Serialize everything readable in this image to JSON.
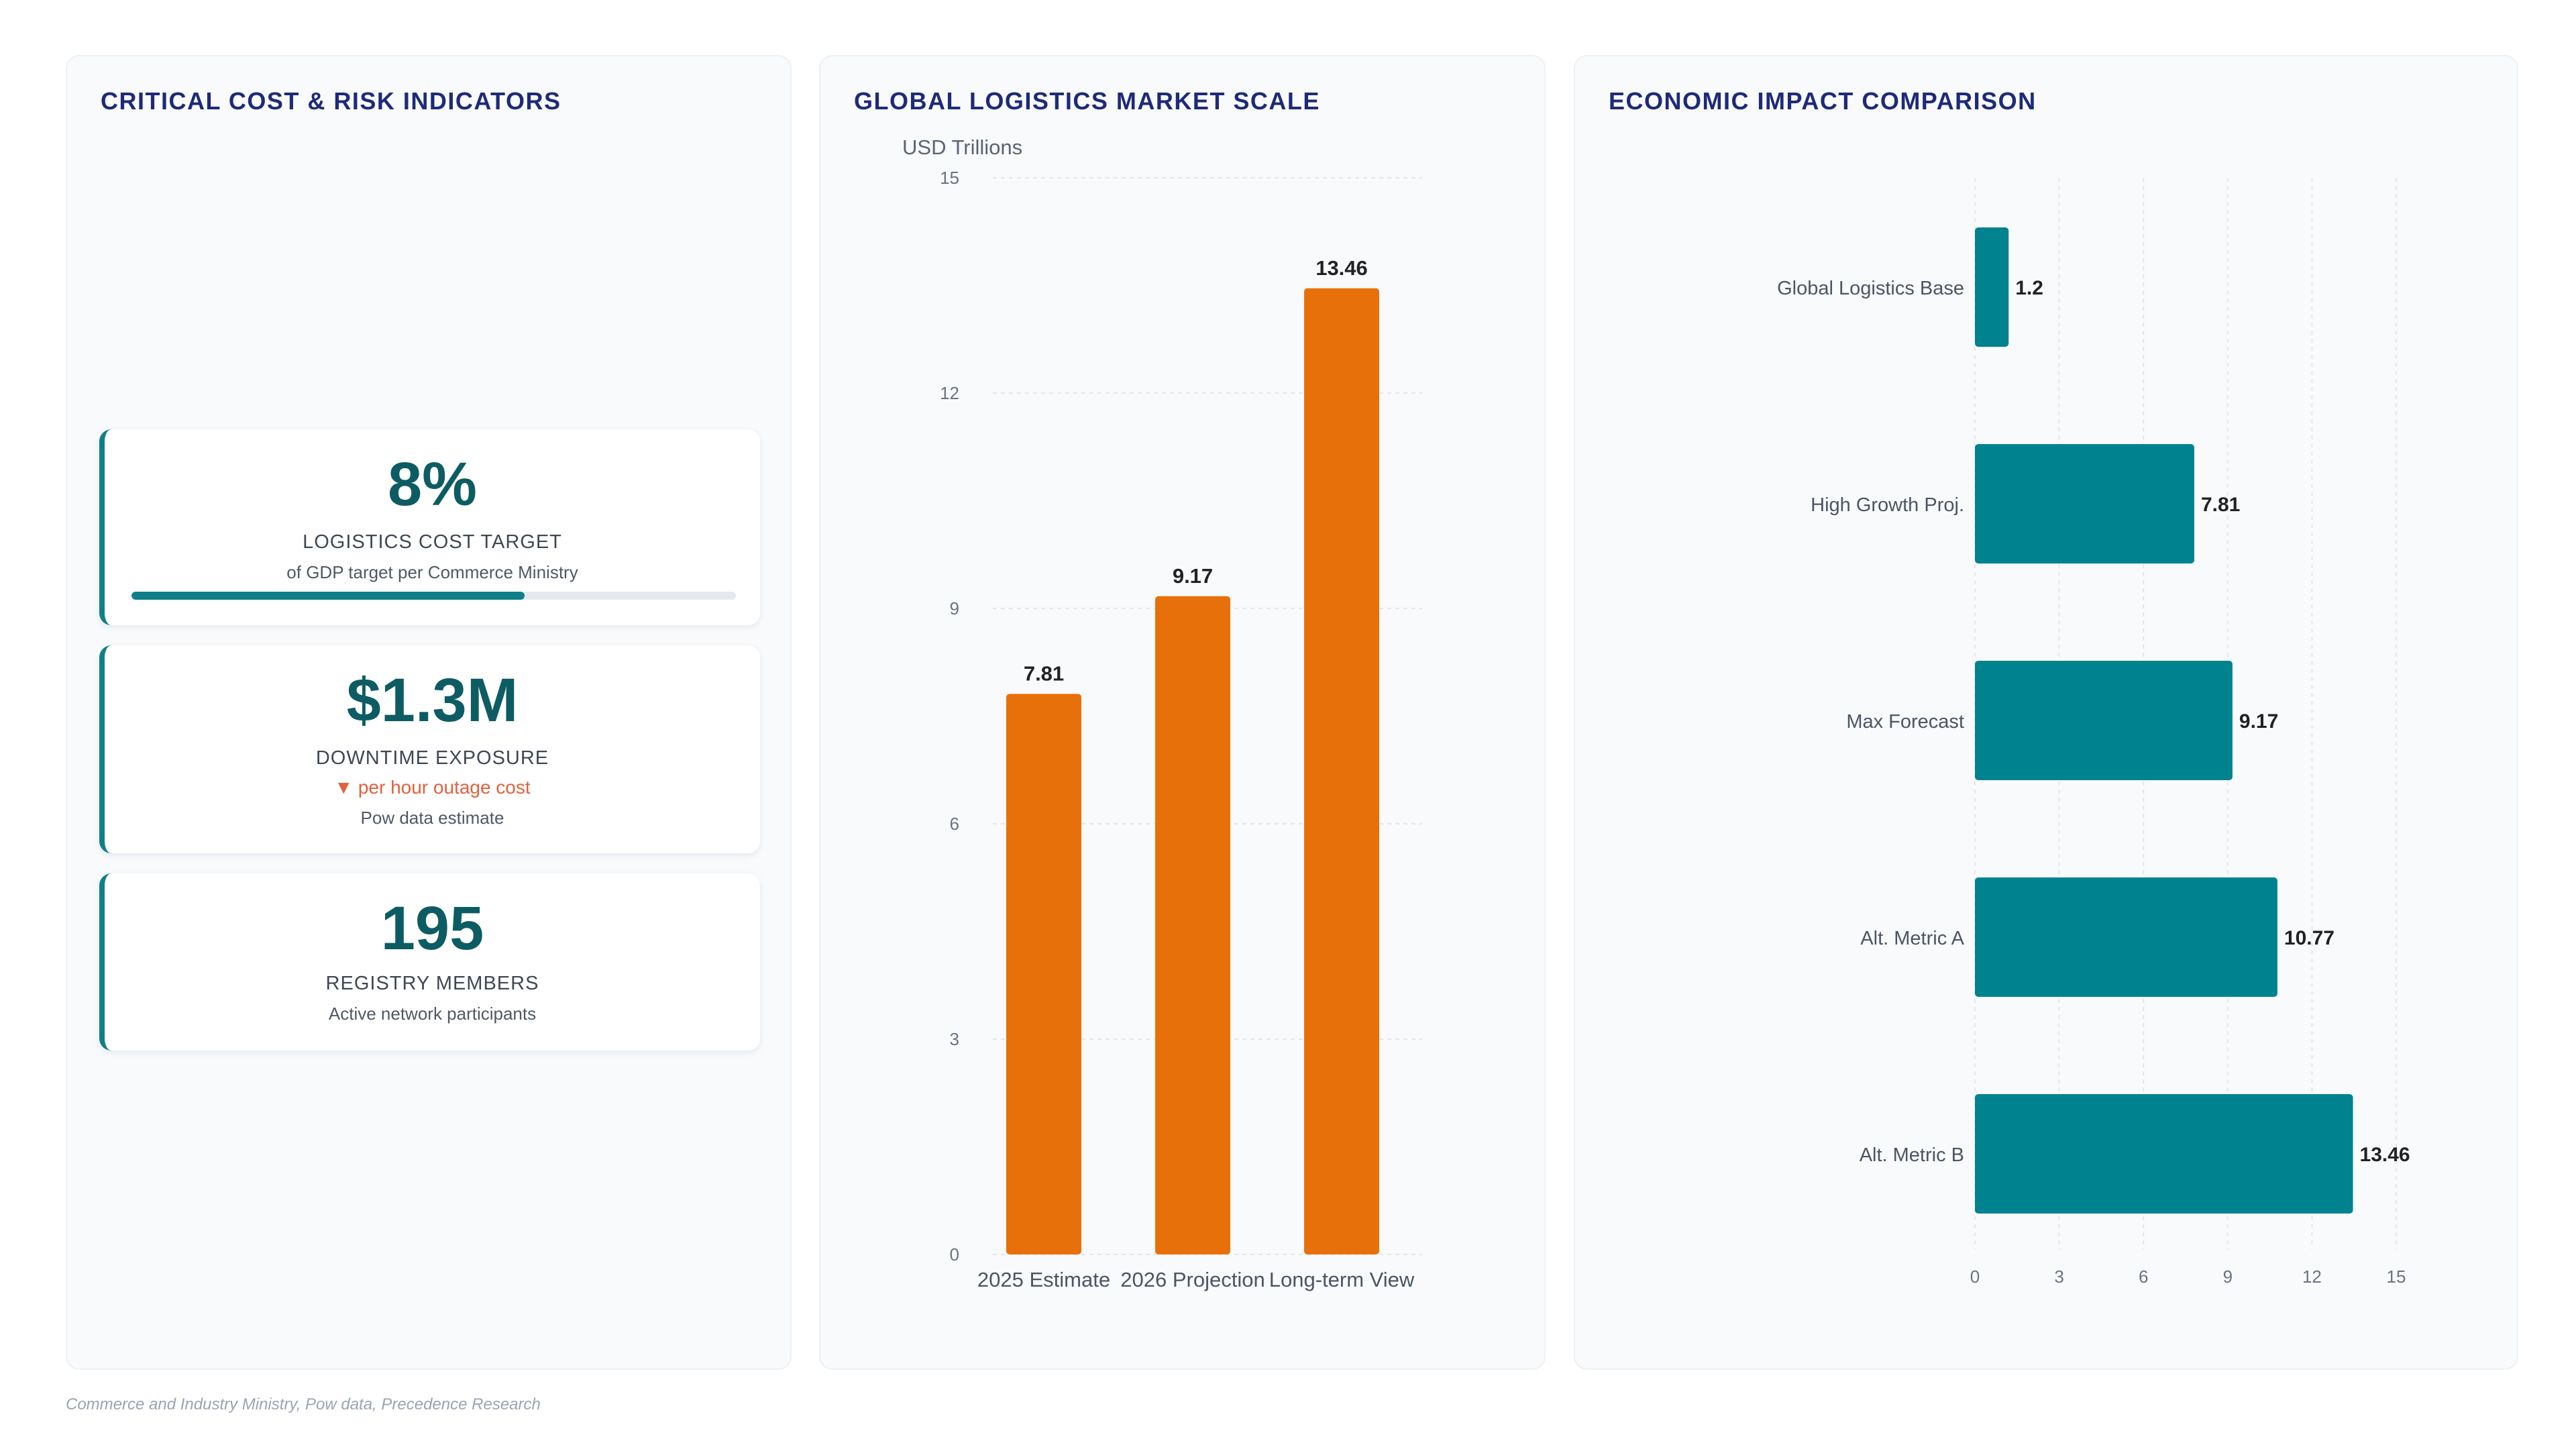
{
  "panels": {
    "kpi_title": "CRITICAL COST & RISK INDICATORS",
    "market_title": "GLOBAL LOGISTICS MARKET SCALE",
    "impact_title": "ECONOMIC IMPACT COMPARISON"
  },
  "kpis": [
    {
      "value": "8%",
      "label": "LOGISTICS COST TARGET",
      "sub": "of GDP target per Commerce Ministry",
      "progress": 0.65
    },
    {
      "value": "$1.3M",
      "label": "DOWNTIME EXPOSURE",
      "trend": "▼ per hour outage cost",
      "sub": "Pow data estimate"
    },
    {
      "value": "195",
      "label": "REGISTRY MEMBERS",
      "sub": "Active network participants"
    }
  ],
  "footer": "Commerce and Industry Ministry, Pow data, Precedence Research",
  "colors": {
    "accent": "#0f7f89",
    "orange": "#e8700a",
    "teal_bar": "#00838f",
    "title": "#1e2a78",
    "trend_down": "#e2603e"
  },
  "chart_data": [
    {
      "type": "bar",
      "title": "GLOBAL LOGISTICS MARKET SCALE",
      "ylabel": "USD Trillions",
      "categories": [
        "2025 Estimate",
        "2026 Projection",
        "Long-term View"
      ],
      "values": [
        7.81,
        9.17,
        13.46
      ],
      "ylim": [
        0,
        15
      ],
      "yticks": [
        0,
        3,
        6,
        9,
        12,
        15
      ],
      "grid": true
    },
    {
      "type": "bar",
      "orientation": "horizontal",
      "title": "ECONOMIC IMPACT COMPARISON",
      "categories": [
        "Global Logistics Base",
        "High Growth Proj.",
        "Max Forecast",
        "Alt. Metric A",
        "Alt. Metric B"
      ],
      "values": [
        1.2,
        7.81,
        9.17,
        10.77,
        13.46
      ],
      "xlim": [
        0,
        15
      ],
      "xticks": [
        0,
        3,
        6,
        9,
        12,
        15
      ],
      "grid": true
    }
  ]
}
